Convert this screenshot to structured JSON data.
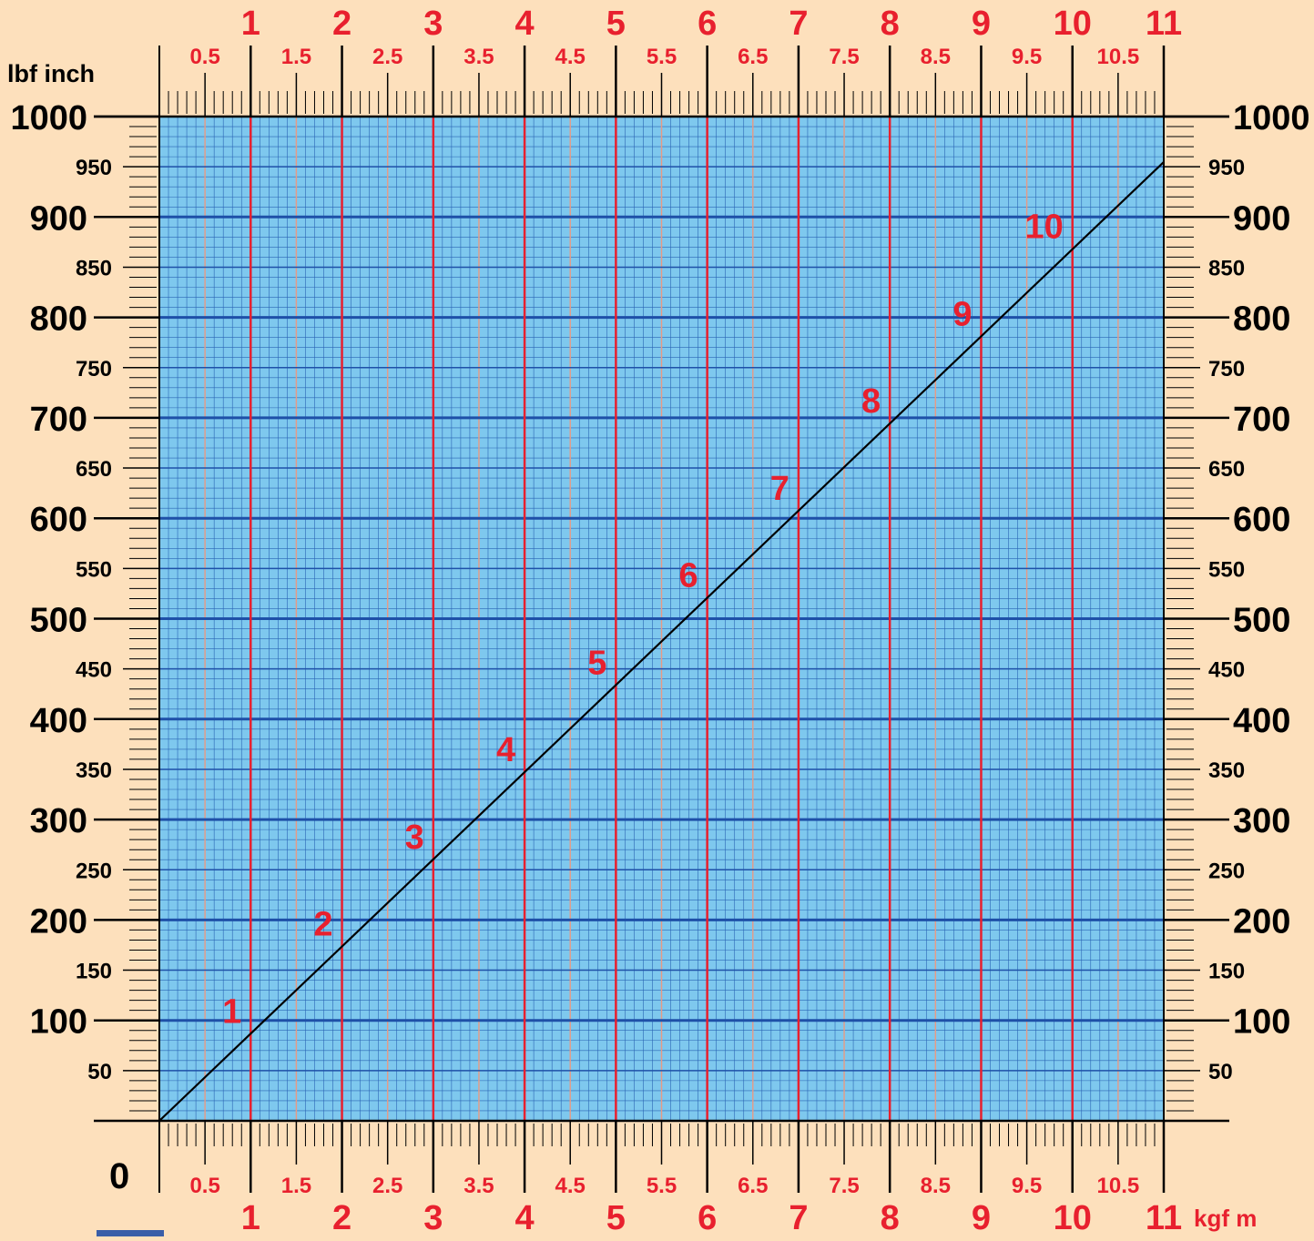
{
  "chart_data": {
    "type": "line",
    "ylabel": "lbf inch",
    "xlabel": "kgf m",
    "origin_label": "0",
    "xlim": [
      0,
      11
    ],
    "ylim": [
      0,
      1000
    ],
    "grid": true,
    "x_major_ticks": [
      "1",
      "2",
      "3",
      "4",
      "5",
      "6",
      "7",
      "8",
      "9",
      "10",
      "11"
    ],
    "x_minor_ticks": [
      "0.5",
      "1.5",
      "2.5",
      "3.5",
      "4.5",
      "5.5",
      "6.5",
      "7.5",
      "8.5",
      "9.5",
      "10.5"
    ],
    "y_major_ticks": [
      "100",
      "200",
      "300",
      "400",
      "500",
      "600",
      "700",
      "800",
      "900",
      "1000"
    ],
    "y_minor_ticks": [
      "50",
      "150",
      "250",
      "350",
      "450",
      "550",
      "650",
      "750",
      "850",
      "950"
    ],
    "series": [
      {
        "x": [
          0,
          11
        ],
        "y": [
          0,
          954.7
        ],
        "color": "#000000"
      }
    ],
    "point_labels": [
      {
        "text": "1",
        "x": 1,
        "y": 86.8
      },
      {
        "text": "2",
        "x": 2,
        "y": 173.6
      },
      {
        "text": "3",
        "x": 3,
        "y": 260.4
      },
      {
        "text": "4",
        "x": 4,
        "y": 347.2
      },
      {
        "text": "5",
        "x": 5,
        "y": 434.0
      },
      {
        "text": "6",
        "x": 6,
        "y": 520.8
      },
      {
        "text": "7",
        "x": 7,
        "y": 607.5
      },
      {
        "text": "8",
        "x": 8,
        "y": 694.3
      },
      {
        "text": "9",
        "x": 9,
        "y": 781.1
      },
      {
        "text": "10",
        "x": 10,
        "y": 867.9
      }
    ],
    "colors": {
      "background": "#fde0bc",
      "plot_fill": "#7ec8ee",
      "fine_grid": "#2a64b4",
      "major_horizontal": "#1e50a8",
      "major_vertical": "#e8202e",
      "minor_vertical": "#e89a84",
      "tick_label_red": "#e8202e",
      "tick_label_black": "#000000",
      "line": "#000000"
    }
  }
}
